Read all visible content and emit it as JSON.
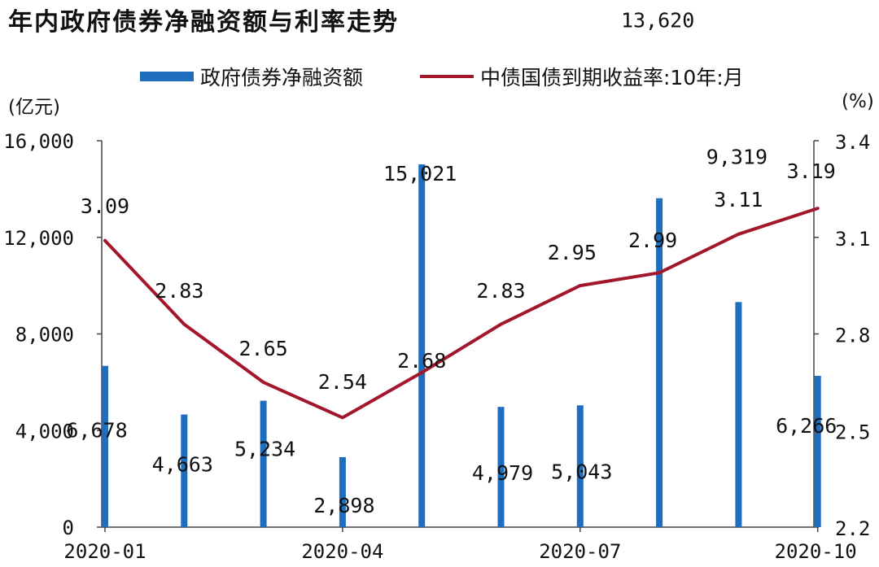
{
  "title": "年内政府债券净融资额与利率走势",
  "legend": {
    "bar_label": "政府债券净融资额",
    "line_label": "中债国债到期收益率:10年:月"
  },
  "units": {
    "left": "(亿元)",
    "right": "(%)"
  },
  "colors": {
    "bar": "#1f6dbd",
    "line": "#a3172c"
  },
  "chart_data": {
    "type": "bar+line",
    "title": "年内政府债券净融资额与利率走势",
    "x": [
      "2020-01",
      "2020-02",
      "2020-03",
      "2020-04",
      "2020-05",
      "2020-06",
      "2020-07",
      "2020-08",
      "2020-09",
      "2020-10"
    ],
    "x_tick_labels": [
      "2020-01",
      "2020-04",
      "2020-07",
      "2020-10"
    ],
    "x_tick_indices": [
      0,
      3,
      6,
      9
    ],
    "series": [
      {
        "name": "政府债券净融资额",
        "type": "bar",
        "axis": "left",
        "values": [
          6678,
          4663,
          5234,
          2898,
          15021,
          4979,
          5043,
          13620,
          9319,
          6266
        ],
        "labels": [
          "6,678",
          "4,663",
          "5,234",
          "2,898",
          "15,021",
          "4,979",
          "5,043",
          "13,620",
          "9,319",
          "6,266"
        ]
      },
      {
        "name": "中债国债到期收益率:10年:月",
        "type": "line",
        "axis": "right",
        "values": [
          3.09,
          2.83,
          2.65,
          2.54,
          2.68,
          2.83,
          2.95,
          2.99,
          3.11,
          3.19
        ],
        "labels": [
          "3.09",
          "2.83",
          "2.65",
          "2.54",
          "2.68",
          "2.83",
          "2.95",
          "2.99",
          "3.11",
          "3.19"
        ]
      }
    ],
    "left_axis": {
      "ylim": [
        0,
        16000
      ],
      "ticks": [
        0,
        4000,
        8000,
        12000,
        16000
      ],
      "tick_labels": [
        "0",
        "4,000",
        "8,000",
        "12,000",
        "16,000"
      ]
    },
    "right_axis": {
      "ylim": [
        2.2,
        3.4
      ],
      "ticks": [
        2.2,
        2.5,
        2.8,
        3.1,
        3.4
      ],
      "tick_labels": [
        "2.2",
        "2.5",
        "2.8",
        "3.1",
        "3.4"
      ]
    },
    "grid": false,
    "legend_position": "top"
  }
}
